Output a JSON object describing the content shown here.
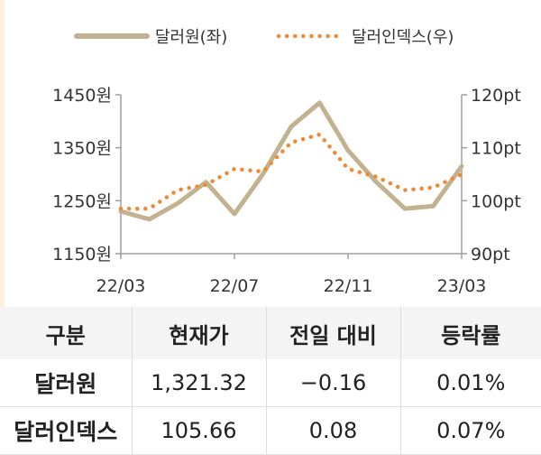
{
  "chart_data": {
    "type": "line",
    "legend": {
      "placement": "top",
      "entries": [
        {
          "label": "달러원(좌)",
          "style": "solid"
        },
        {
          "label": "달러인덱스(우)",
          "style": "dotted"
        }
      ]
    },
    "x_tick_labels": [
      "22/03",
      "22/07",
      "22/11",
      "23/03"
    ],
    "y_left": {
      "ticks": [
        1150,
        1250,
        1350,
        1450
      ],
      "tick_labels": [
        "1150원",
        "1250원",
        "1350원",
        "1450원"
      ],
      "range": [
        1150,
        1450
      ]
    },
    "y_right": {
      "ticks": [
        90,
        100,
        110,
        120
      ],
      "tick_labels": [
        "90pt",
        "100pt",
        "110pt",
        "120pt"
      ],
      "range": [
        90,
        120
      ]
    },
    "grid": false,
    "series": [
      {
        "name": "달러원(좌)",
        "axis": "left",
        "color": "#c3b290",
        "style": "solid",
        "x": [
          "22/03",
          "22/04",
          "22/05",
          "22/06",
          "22/07",
          "22/08",
          "22/09",
          "22/10",
          "22/11",
          "22/12",
          "23/01",
          "23/02",
          "23/03"
        ],
        "values": [
          1230,
          1215,
          1245,
          1285,
          1225,
          1300,
          1390,
          1435,
          1345,
          1285,
          1235,
          1240,
          1315
        ]
      },
      {
        "name": "달러인덱스(우)",
        "axis": "right",
        "color": "#ee8a35",
        "style": "dotted",
        "x": [
          "22/03",
          "22/04",
          "22/05",
          "22/06",
          "22/07",
          "22/08",
          "22/09",
          "22/10",
          "22/11",
          "22/12",
          "23/01",
          "23/02",
          "23/03"
        ],
        "values": [
          98.5,
          98.5,
          102,
          103,
          106,
          105.5,
          111,
          112.5,
          106,
          104.5,
          102,
          102.5,
          105
        ]
      }
    ]
  },
  "table": {
    "headers": [
      "구분",
      "현재가",
      "전일 대비",
      "등락률"
    ],
    "rows": [
      {
        "name": "달러원",
        "price": "1,321.32",
        "change": "−0.16",
        "rate": "0.01%"
      },
      {
        "name": "달러인덱스",
        "price": "105.66",
        "change": "0.08",
        "rate": "0.07%"
      }
    ]
  }
}
